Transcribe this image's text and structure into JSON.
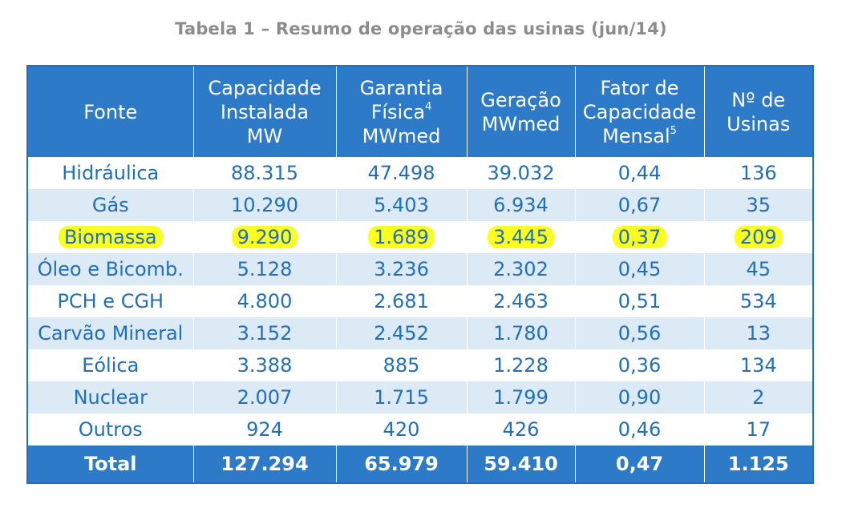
{
  "title": "Tabela 1 – Resumo de operação das usinas (jun/14)",
  "headers": {
    "fonte": "Fonte",
    "capacidade": {
      "line1": "Capacidade",
      "line2": "Instalada",
      "line3": "MW"
    },
    "garantia": {
      "line1": "Garantia",
      "line2": "Física",
      "sup": "4",
      "line3": "MWmed"
    },
    "geracao": {
      "line1": "Geração",
      "line2": "MWmed"
    },
    "fator": {
      "line1": "Fator de",
      "line2": "Capacidade",
      "line3": "Mensal",
      "sup": "5"
    },
    "usinas": {
      "line1": "Nº de",
      "line2": "Usinas"
    }
  },
  "rows": [
    {
      "fonte": "Hidráulica",
      "capacidade": "88.315",
      "garantia": "47.498",
      "geracao": "39.032",
      "fator": "0,44",
      "usinas": "136"
    },
    {
      "fonte": "Gás",
      "capacidade": "10.290",
      "garantia": "5.403",
      "geracao": "6.934",
      "fator": "0,67",
      "usinas": "35"
    },
    {
      "fonte": "Biomassa",
      "capacidade": "9.290",
      "garantia": "1.689",
      "geracao": "3.445",
      "fator": "0,37",
      "usinas": "209"
    },
    {
      "fonte": "Óleo e Bicomb.",
      "capacidade": "5.128",
      "garantia": "3.236",
      "geracao": "2.302",
      "fator": "0,45",
      "usinas": "45"
    },
    {
      "fonte": "PCH e CGH",
      "capacidade": "4.800",
      "garantia": "2.681",
      "geracao": "2.463",
      "fator": "0,51",
      "usinas": "534"
    },
    {
      "fonte": "Carvão Mineral",
      "capacidade": "3.152",
      "garantia": "2.452",
      "geracao": "1.780",
      "fator": "0,56",
      "usinas": "13"
    },
    {
      "fonte": "Eólica",
      "capacidade": "3.388",
      "garantia": "885",
      "geracao": "1.228",
      "fator": "0,36",
      "usinas": "134"
    },
    {
      "fonte": "Nuclear",
      "capacidade": "2.007",
      "garantia": "1.715",
      "geracao": "1.799",
      "fator": "0,90",
      "usinas": "2"
    },
    {
      "fonte": "Outros",
      "capacidade": "924",
      "garantia": "420",
      "geracao": "426",
      "fator": "0,46",
      "usinas": "17"
    }
  ],
  "total": {
    "fonte": "Total",
    "capacidade": "127.294",
    "garantia": "65.979",
    "geracao": "59.410",
    "fator": "0,47",
    "usinas": "1.125"
  },
  "highlight_color": "#fbff1f",
  "header_color": "#2d7ac8",
  "text_color": "#1f6fba",
  "stripe_color": "#dbeaf4"
}
